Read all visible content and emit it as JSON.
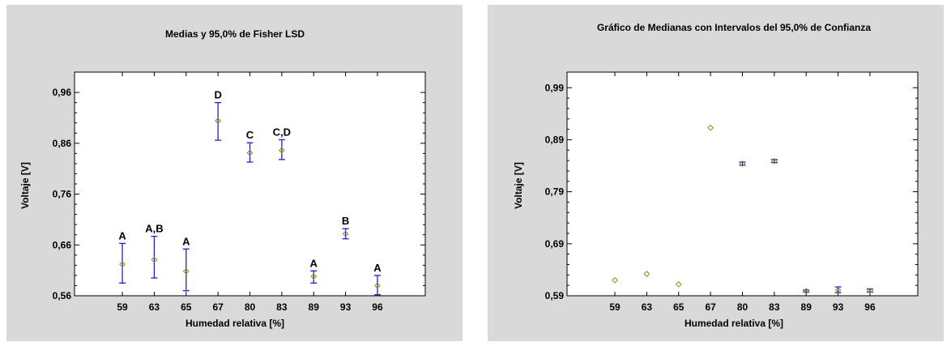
{
  "chart_data": [
    {
      "type": "scatter",
      "title": "Medias y 95,0% de Fisher LSD",
      "xlabel": "Humedad relativa [%]",
      "ylabel": "Voltaje [V]",
      "categories": [
        "59",
        "63",
        "65",
        "67",
        "80",
        "83",
        "89",
        "93",
        "96"
      ],
      "ylim": [
        0.56,
        1.0
      ],
      "yticks": [
        0.56,
        0.66,
        0.76,
        0.86,
        0.96
      ],
      "ytick_labels": [
        "0,56",
        "0,66",
        "0,76",
        "0,86",
        "0,96"
      ],
      "means": [
        0.622,
        0.631,
        0.608,
        0.904,
        0.841,
        0.846,
        0.598,
        0.682,
        0.58
      ],
      "lower": [
        0.585,
        0.595,
        0.57,
        0.866,
        0.823,
        0.828,
        0.585,
        0.672,
        0.562
      ],
      "upper": [
        0.663,
        0.677,
        0.652,
        0.94,
        0.861,
        0.867,
        0.609,
        0.692,
        0.6
      ],
      "group_labels": [
        "A",
        "A,B",
        "A",
        "D",
        "C",
        "C,D",
        "A",
        "B",
        "A"
      ],
      "marker_color": "#8c8c1a",
      "interval_color": "#1f1fd0"
    },
    {
      "type": "scatter",
      "title": "Gráfico de Medianas con Intervalos del 95,0% de Confianza",
      "xlabel": "Humedad relativa [%]",
      "ylabel": "Voltaje [V]",
      "categories": [
        "59",
        "63",
        "65",
        "67",
        "80",
        "83",
        "89",
        "93",
        "96"
      ],
      "ylim": [
        0.59,
        1.02
      ],
      "yticks": [
        0.59,
        0.69,
        0.79,
        0.89,
        0.99
      ],
      "ytick_labels": [
        "0,59",
        "0,69",
        "0,79",
        "0,89",
        "0,99"
      ],
      "medians": [
        0.62,
        0.632,
        0.612,
        0.913,
        0.844,
        0.849,
        0.599,
        0.601,
        0.6
      ],
      "lower": [
        null,
        null,
        null,
        null,
        0.841,
        0.846,
        0.597,
        0.596,
        0.597
      ],
      "upper": [
        null,
        null,
        null,
        null,
        0.847,
        0.852,
        0.601,
        0.607,
        0.603
      ],
      "marker_color": "#8c8c1a",
      "interval_color": "#1f1fd0"
    }
  ]
}
